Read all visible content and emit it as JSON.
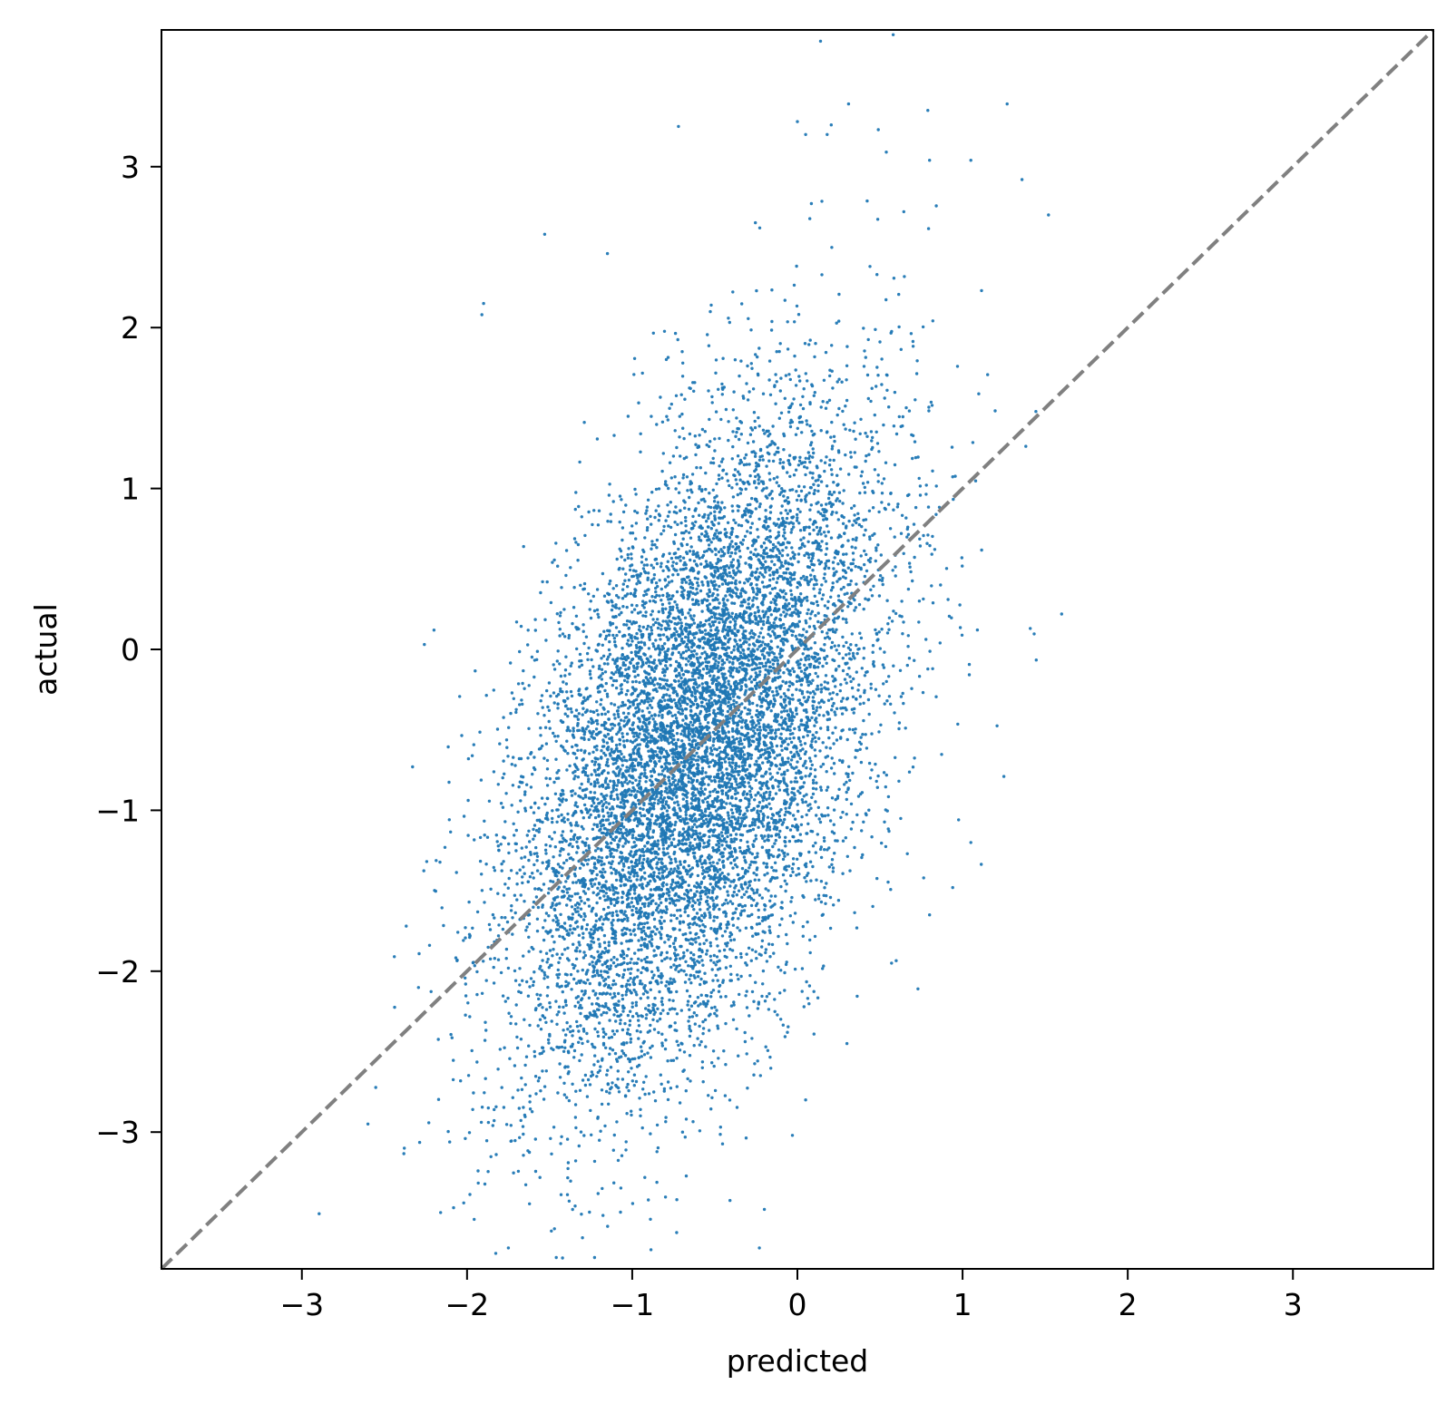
{
  "chart_data": {
    "type": "scatter",
    "title": "",
    "xlabel": "predicted",
    "ylabel": "actual",
    "xlim": [
      -3.85,
      3.85
    ],
    "ylim": [
      -3.85,
      3.85
    ],
    "xticks": [
      -3,
      -2,
      -1,
      0,
      1,
      2,
      3
    ],
    "yticks": [
      -3,
      -2,
      -1,
      0,
      1,
      2,
      3
    ],
    "xtick_labels": [
      "−3",
      "−2",
      "−1",
      "0",
      "1",
      "2",
      "3"
    ],
    "ytick_labels": [
      "−3",
      "−2",
      "−1",
      "0",
      "1",
      "2",
      "3"
    ],
    "reference_line": {
      "kind": "identity",
      "x": [
        -3.85,
        3.85
      ],
      "y": [
        -3.85,
        3.85
      ],
      "style": "dashed",
      "color": "#808080"
    },
    "grid": false,
    "legend": "none",
    "marker_color": "#1f77b4",
    "series": [
      {
        "distribution": {
          "n": 10000,
          "x_mean": -0.62,
          "x_std": 0.55,
          "y_mean": -0.62,
          "y_std": 1.02,
          "correlation": 0.5
        },
        "points": [
          [
            0.14,
            3.78
          ],
          [
            0.58,
            3.82
          ],
          [
            0.31,
            3.39
          ],
          [
            1.27,
            3.39
          ],
          [
            0.79,
            3.35
          ],
          [
            -0.72,
            3.25
          ],
          [
            0.0,
            3.28
          ],
          [
            0.49,
            3.23
          ],
          [
            0.05,
            3.2
          ],
          [
            0.18,
            3.2
          ],
          [
            1.05,
            3.04
          ],
          [
            0.8,
            3.04
          ],
          [
            1.36,
            2.92
          ],
          [
            1.52,
            2.7
          ],
          [
            -1.9,
            2.15
          ],
          [
            -1.91,
            2.08
          ],
          [
            -1.53,
            2.58
          ],
          [
            -1.15,
            2.46
          ],
          [
            -2.2,
            0.12
          ],
          [
            -2.33,
            -0.73
          ],
          [
            -2.44,
            -1.91
          ],
          [
            -2.6,
            -2.95
          ],
          [
            -2.38,
            -3.1
          ],
          [
            -2.16,
            -3.5
          ],
          [
            -2.02,
            -3.44
          ],
          [
            -1.75,
            -3.72
          ],
          [
            -0.23,
            -3.72
          ],
          [
            -0.73,
            -3.42
          ],
          [
            1.6,
            0.22
          ],
          [
            1.41,
            0.13
          ],
          [
            1.25,
            -0.79
          ],
          [
            1.05,
            -1.2
          ],
          [
            0.94,
            -1.48
          ],
          [
            0.8,
            -1.65
          ],
          [
            0.73,
            -2.11
          ],
          [
            0.57,
            -1.95
          ],
          [
            0.3,
            -2.45
          ],
          [
            0.05,
            -2.8
          ],
          [
            -0.03,
            -3.02
          ],
          [
            -0.2,
            -3.48
          ]
        ]
      }
    ]
  }
}
